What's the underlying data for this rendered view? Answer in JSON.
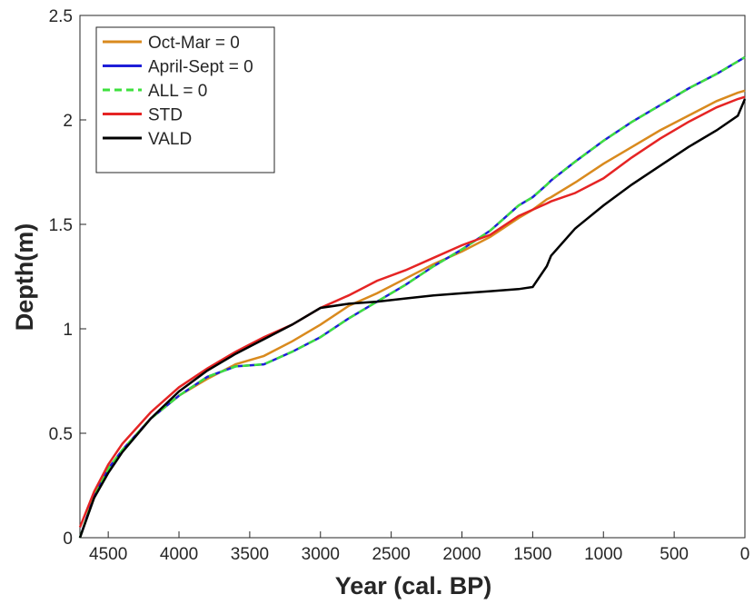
{
  "chart_data": {
    "type": "line",
    "xlabel": "Year (cal. BP)",
    "ylabel": "Depth(m)",
    "x": [
      4700,
      4600,
      4500,
      4400,
      4200,
      4000,
      3800,
      3600,
      3400,
      3200,
      3000,
      2800,
      2600,
      2400,
      2200,
      2000,
      1800,
      1600,
      1500,
      1400,
      1370,
      1200,
      1000,
      800,
      600,
      400,
      200,
      50,
      0
    ],
    "xlim": [
      4700,
      0
    ],
    "xticks": [
      4500,
      4000,
      3500,
      3000,
      2500,
      2000,
      1500,
      1000,
      500,
      0
    ],
    "ylim": [
      0,
      2.5
    ],
    "yticks": [
      0,
      0.5,
      1,
      1.5,
      2,
      2.5
    ],
    "legend": "upper-left",
    "series": [
      {
        "name": "Oct-Mar = 0",
        "color": "#d98a1e",
        "values": [
          0,
          0.2,
          0.33,
          0.42,
          0.57,
          0.68,
          0.76,
          0.83,
          0.87,
          0.94,
          1.02,
          1.11,
          1.17,
          1.24,
          1.31,
          1.37,
          1.44,
          1.53,
          1.57,
          1.62,
          1.63,
          1.7,
          1.79,
          1.87,
          1.95,
          2.02,
          2.09,
          2.13,
          2.14
        ]
      },
      {
        "name": "April-Sept = 0",
        "color": "#1f1fd8",
        "values": [
          0,
          0.2,
          0.33,
          0.42,
          0.57,
          0.68,
          0.77,
          0.82,
          0.83,
          0.89,
          0.96,
          1.05,
          1.13,
          1.21,
          1.3,
          1.38,
          1.47,
          1.59,
          1.63,
          1.69,
          1.71,
          1.8,
          1.9,
          1.99,
          2.07,
          2.15,
          2.22,
          2.28,
          2.3
        ]
      },
      {
        "name": "ALL = 0",
        "color": "#3ee03e",
        "dashed": true,
        "values": [
          0,
          0.2,
          0.33,
          0.42,
          0.57,
          0.68,
          0.77,
          0.82,
          0.83,
          0.89,
          0.96,
          1.05,
          1.13,
          1.21,
          1.3,
          1.38,
          1.47,
          1.59,
          1.63,
          1.69,
          1.71,
          1.8,
          1.9,
          1.99,
          2.07,
          2.15,
          2.22,
          2.28,
          2.3
        ]
      },
      {
        "name": "STD",
        "color": "#e52424",
        "values": [
          0.05,
          0.22,
          0.35,
          0.45,
          0.6,
          0.72,
          0.81,
          0.89,
          0.96,
          1.02,
          1.1,
          1.16,
          1.23,
          1.28,
          1.34,
          1.4,
          1.45,
          1.54,
          1.57,
          1.6,
          1.61,
          1.65,
          1.72,
          1.82,
          1.91,
          1.99,
          2.06,
          2.1,
          2.11
        ]
      },
      {
        "name": "VALD",
        "color": "#000000",
        "values": [
          0,
          0.19,
          0.31,
          0.41,
          0.57,
          0.7,
          0.8,
          0.88,
          0.95,
          1.02,
          1.1,
          1.12,
          1.13,
          1.145,
          1.16,
          1.17,
          1.18,
          1.19,
          1.2,
          1.3,
          1.35,
          1.48,
          1.59,
          1.69,
          1.78,
          1.87,
          1.95,
          2.02,
          2.1
        ]
      }
    ]
  }
}
